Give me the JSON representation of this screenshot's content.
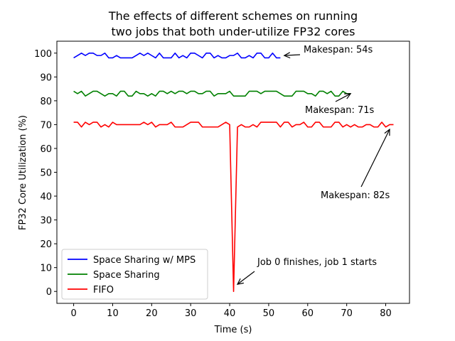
{
  "chart_data": {
    "type": "line",
    "title_lines": [
      "The effects of different schemes on running",
      "two jobs that both under-utilize FP32 cores"
    ],
    "xlabel": "Time (s)",
    "ylabel": "FP32 Core Utilization (%)",
    "xlim": [
      -4.3,
      86.1
    ],
    "ylim": [
      -5,
      105
    ],
    "xticks": [
      0,
      10,
      20,
      30,
      40,
      50,
      60,
      70,
      80
    ],
    "yticks": [
      0,
      10,
      20,
      30,
      40,
      50,
      60,
      70,
      80,
      90,
      100
    ],
    "legend_position": "lower-left",
    "series": [
      {
        "name": "Space Sharing w/ MPS",
        "color": "#0000ff",
        "values": [
          98,
          99,
          100,
          99,
          100,
          100,
          99,
          99,
          100,
          98,
          98,
          99,
          98,
          98,
          98,
          98,
          99,
          100,
          99,
          100,
          99,
          98,
          100,
          98,
          98,
          98,
          100,
          98,
          99,
          98,
          100,
          100,
          99,
          98,
          100,
          100,
          98,
          99,
          98,
          98,
          99,
          99,
          100,
          98,
          98,
          99,
          98,
          100,
          100,
          98,
          98,
          100,
          98,
          98
        ]
      },
      {
        "name": "Space Sharing",
        "color": "#008000",
        "values": [
          84,
          83,
          84,
          82,
          83,
          84,
          84,
          83,
          82,
          83,
          83,
          82,
          84,
          84,
          82,
          82,
          84,
          83,
          83,
          82,
          83,
          82,
          84,
          84,
          83,
          84,
          83,
          84,
          84,
          83,
          84,
          84,
          83,
          83,
          84,
          84,
          82,
          83,
          83,
          83,
          84,
          82,
          82,
          82,
          82,
          84,
          84,
          84,
          83,
          84,
          84,
          84,
          84,
          83,
          82,
          82,
          82,
          84,
          84,
          84,
          83,
          83,
          82,
          84,
          84,
          83,
          84,
          82,
          82,
          84,
          83,
          83
        ]
      },
      {
        "name": "FIFO",
        "color": "#ff0000",
        "values": [
          71,
          71,
          69,
          71,
          70,
          71,
          71,
          69,
          70,
          69,
          71,
          70,
          70,
          70,
          70,
          70,
          70,
          70,
          71,
          70,
          71,
          69,
          70,
          70,
          70,
          71,
          69,
          69,
          69,
          70,
          71,
          71,
          71,
          69,
          69,
          69,
          69,
          69,
          70,
          71,
          70,
          0,
          69,
          70,
          69,
          69,
          70,
          69,
          71,
          71,
          71,
          71,
          71,
          69,
          71,
          71,
          69,
          70,
          70,
          71,
          69,
          69,
          71,
          71,
          69,
          69,
          69,
          71,
          71,
          69,
          70,
          69,
          70,
          69,
          69,
          70,
          70,
          69,
          69,
          71,
          69,
          70,
          70
        ]
      }
    ],
    "annotations": [
      {
        "text": "Makespan: 54s",
        "point": [
          54,
          99
        ]
      },
      {
        "text": "Makespan: 71s",
        "point": [
          71,
          83
        ]
      },
      {
        "text": "Makespan: 82s",
        "point": [
          81,
          68
        ]
      },
      {
        "text": "Job 0 finishes, job 1 starts",
        "point": [
          42,
          3
        ]
      }
    ]
  }
}
